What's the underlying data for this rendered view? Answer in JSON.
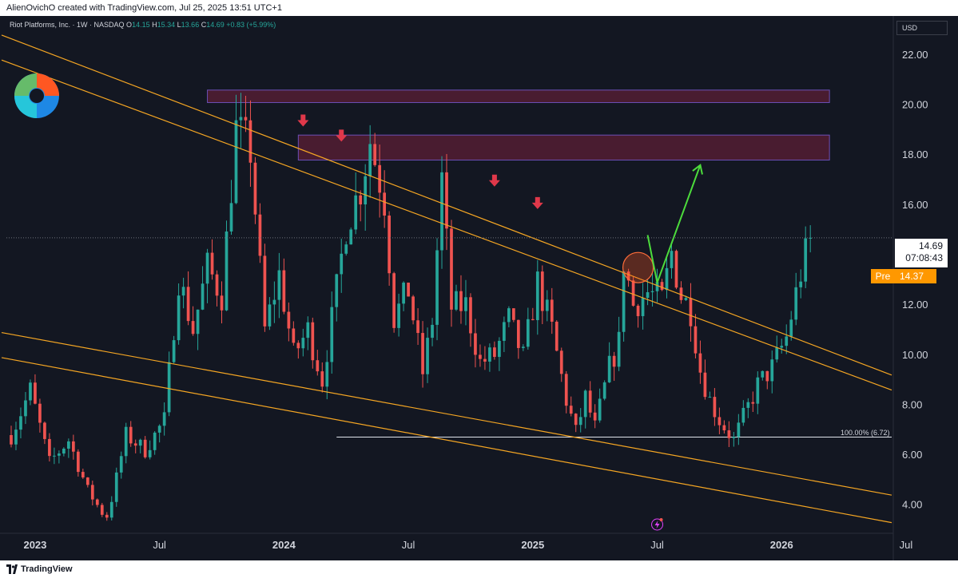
{
  "header": {
    "attribution": "AlienOvichO created with TradingView.com, Jul 25, 2025 13:51 UTC+1"
  },
  "footer": {
    "brand": "TradingView"
  },
  "symbol": {
    "name": "Riot Platforms, Inc. · 1W · NASDAQ",
    "o_label": "O",
    "o": "14.15",
    "h_label": "H",
    "h": "15.34",
    "l_label": "L",
    "l": "13.66",
    "c_label": "C",
    "c": "14.69",
    "change": "+0.83 (+5.99%)"
  },
  "currency": "USD",
  "price_label": {
    "price": "14.69",
    "countdown": "07:08:43"
  },
  "premarket": {
    "label": "Pre",
    "price": "14.37"
  },
  "fib_label": "100.00% (6.72)",
  "colors": {
    "background": "#131722",
    "up": "#26a69a",
    "down": "#ef5350",
    "trendline": "#f5a623",
    "zone": "#5c1f35",
    "arrow_down": "#e0384a",
    "arrow_up": "#4cdc3c"
  },
  "chart_data": {
    "type": "candlestick",
    "ylim": [
      3,
      23.5
    ],
    "y_ticks": [
      "4.00",
      "6.00",
      "8.00",
      "10.00",
      "12.00",
      "14.00",
      "16.00",
      "18.00",
      "20.00",
      "22.00"
    ],
    "x_ticks": [
      "2023",
      "Jul",
      "2024",
      "Jul",
      "2025",
      "Jul",
      "2026",
      "Jul"
    ],
    "x_range_weeks": [
      -1,
      184
    ],
    "last_close": 14.69,
    "swing_path": [
      [
        0,
        6.8
      ],
      [
        4,
        8.6
      ],
      [
        8,
        5.7
      ],
      [
        12,
        6.6
      ],
      [
        16,
        4.6
      ],
      [
        20,
        3.4
      ],
      [
        24,
        6.8
      ],
      [
        28,
        6.2
      ],
      [
        32,
        7.4
      ],
      [
        35,
        13.1
      ],
      [
        38,
        11.0
      ],
      [
        41,
        13.5
      ],
      [
        44,
        12.4
      ],
      [
        47,
        19.0
      ],
      [
        50,
        18.2
      ],
      [
        53,
        11.0
      ],
      [
        56,
        13.2
      ],
      [
        59,
        10.0
      ],
      [
        62,
        11.0
      ],
      [
        65,
        9.0
      ],
      [
        68,
        12.6
      ],
      [
        70,
        15.2
      ],
      [
        73,
        16.7
      ],
      [
        75,
        18.6
      ],
      [
        78,
        16.2
      ],
      [
        80,
        11.5
      ],
      [
        83,
        12.6
      ],
      [
        86,
        9.3
      ],
      [
        88,
        11.4
      ],
      [
        90,
        17.0
      ],
      [
        92,
        11.9
      ],
      [
        95,
        12.0
      ],
      [
        98,
        9.7
      ],
      [
        101,
        10.0
      ],
      [
        104,
        11.4
      ],
      [
        107,
        9.9
      ],
      [
        110,
        12.9
      ],
      [
        113,
        11.0
      ],
      [
        116,
        8.2
      ],
      [
        118,
        6.9
      ],
      [
        120,
        8.3
      ],
      [
        122,
        7.1
      ],
      [
        125,
        9.5
      ],
      [
        127,
        10.5
      ],
      [
        128,
        13.8
      ],
      [
        130,
        12.0
      ],
      [
        133,
        12.5
      ],
      [
        136,
        12.2
      ],
      [
        138,
        14.1
      ],
      [
        140,
        12.4
      ],
      [
        142,
        11.8
      ],
      [
        144,
        9.4
      ],
      [
        146,
        8.2
      ],
      [
        148,
        7.4
      ],
      [
        151,
        6.6
      ],
      [
        153,
        7.5
      ],
      [
        156,
        8.8
      ],
      [
        159,
        9.5
      ],
      [
        162,
        10.7
      ],
      [
        165,
        13.3
      ],
      [
        167,
        14.69
      ]
    ],
    "trendlines": [
      {
        "from": [
          -2,
          22.8
        ],
        "to": [
          184,
          9.2
        ]
      },
      {
        "from": [
          -2,
          21.8
        ],
        "to": [
          184,
          8.6
        ]
      },
      {
        "from": [
          -2,
          10.9
        ],
        "to": [
          184,
          4.4
        ]
      },
      {
        "from": [
          -2,
          9.9
        ],
        "to": [
          184,
          3.3
        ]
      }
    ],
    "zones": [
      {
        "x0": 41,
        "x1": 171,
        "y0": 20.1,
        "y1": 20.6
      },
      {
        "x0": 60,
        "x1": 171,
        "y0": 17.8,
        "y1": 18.8
      }
    ],
    "fib_line": {
      "x0": 68,
      "x1": 184,
      "y": 6.72
    },
    "down_arrows": [
      {
        "x": 61,
        "y": 19.3
      },
      {
        "x": 69,
        "y": 18.7
      },
      {
        "x": 101,
        "y": 16.9
      },
      {
        "x": 110,
        "y": 16.0
      }
    ],
    "highlight_circle": {
      "x": 131,
      "y": 13.5
    },
    "projection": [
      [
        133,
        14.8
      ],
      [
        135,
        12.9
      ],
      [
        144,
        17.6
      ]
    ]
  }
}
